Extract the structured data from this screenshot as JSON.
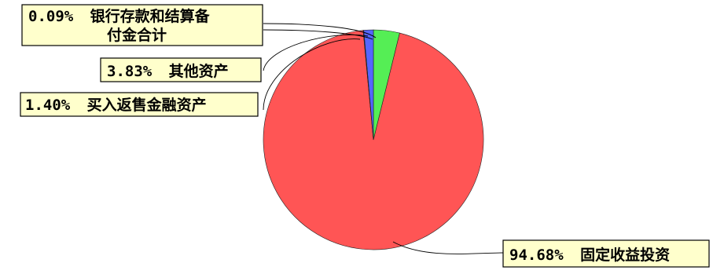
{
  "chart_data": {
    "type": "pie",
    "title": "",
    "slices": [
      {
        "label": "银行存款和结算备付金合计",
        "value": 0.09,
        "display": "0.09%",
        "color": "#2222cc"
      },
      {
        "label": "其他资产",
        "value": 3.83,
        "display": "3.83%",
        "color": "#55ee55"
      },
      {
        "label": "买入返售金融资产",
        "value": 1.4,
        "display": "1.40%",
        "color": "#5566ff"
      },
      {
        "label": "固定收益投资",
        "value": 94.68,
        "display": "94.68%",
        "color": "#ff5555"
      }
    ]
  },
  "labels": {
    "cash": {
      "percent": "0.09%",
      "line1": "银行存款和结算备",
      "line2": "付金合计"
    },
    "other": {
      "percent": "3.83%",
      "name": "其他资产"
    },
    "repo": {
      "percent": "1.40%",
      "name": "买入返售金融资产"
    },
    "fixed": {
      "percent": "94.68%",
      "name": "固定收益投资"
    }
  }
}
